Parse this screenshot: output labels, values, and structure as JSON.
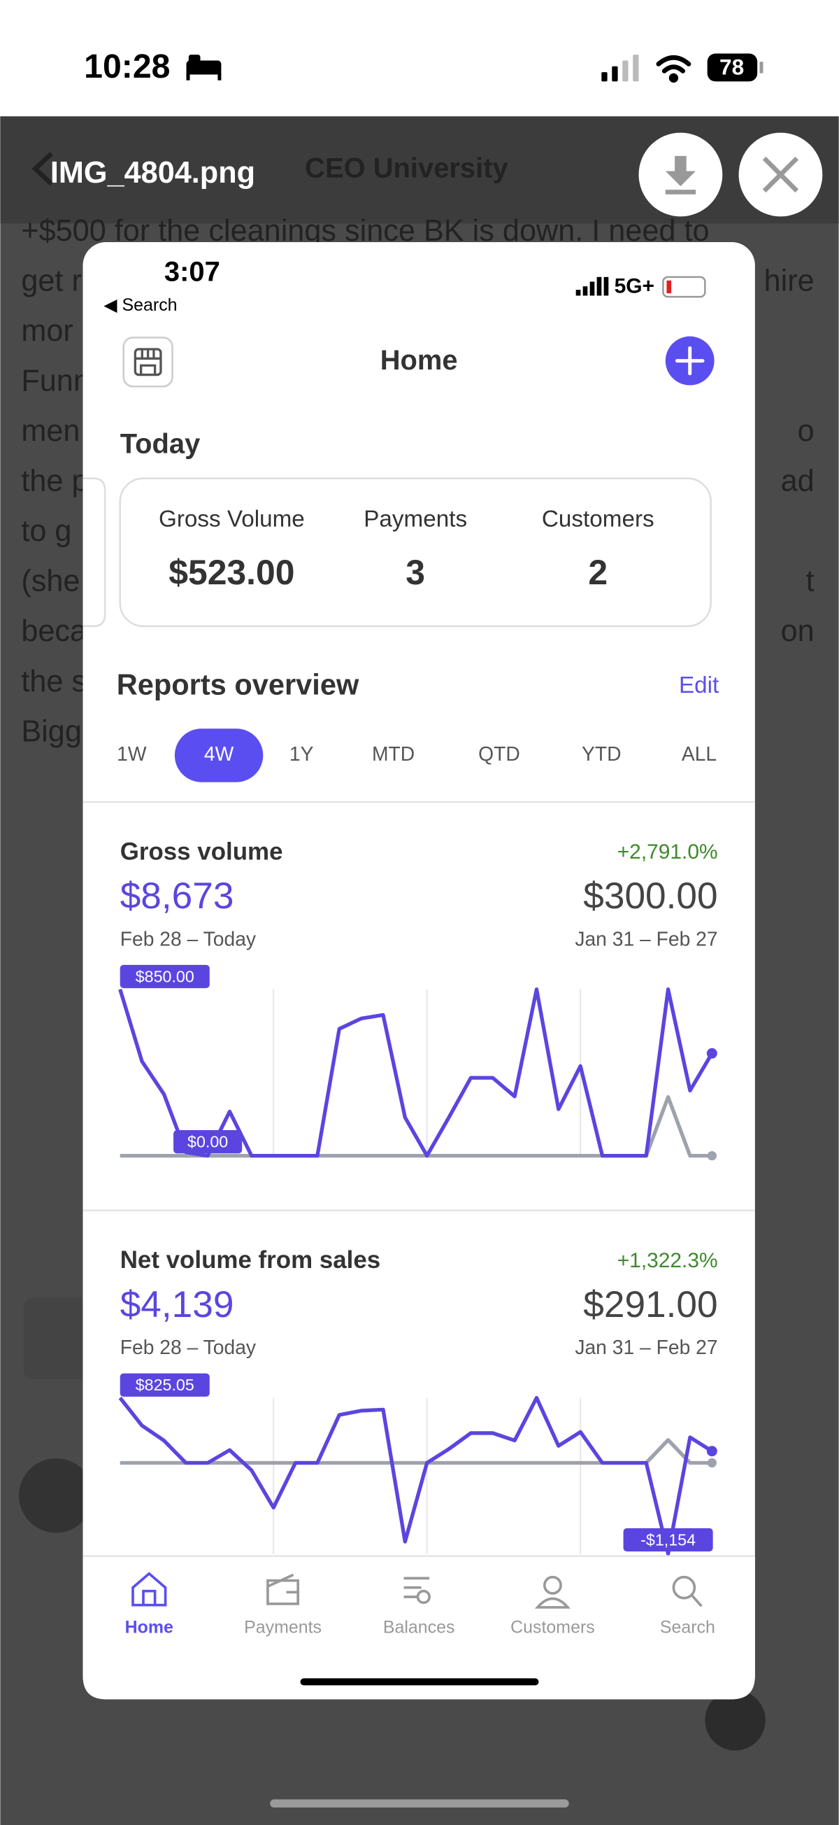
{
  "status_bar": {
    "time": "10:28",
    "battery": "78"
  },
  "viewer": {
    "filename": "IMG_4804.png",
    "behind_title": "CEO University"
  },
  "background": {
    "lines": [
      {
        "left": "+$500 for the cleanings since BK is down. I need to"
      },
      {
        "left": "get r",
        "right": "hire"
      },
      {
        "left": "mor"
      },
      {
        "left": "Funn"
      },
      {
        "left": "men",
        "right": "o"
      },
      {
        "left": "the p",
        "right": "ad"
      },
      {
        "left": "to g"
      },
      {
        "left": "(she",
        "right": "t"
      },
      {
        "left": "beca",
        "right": "on"
      },
      {
        "left": "the s"
      },
      {
        "left": "Bigg"
      }
    ]
  },
  "app": {
    "status_bar": {
      "time": "3:07",
      "back": "◀ Search",
      "network": "5G+"
    },
    "header": {
      "title": "Home"
    },
    "today": {
      "title": "Today",
      "stats": [
        {
          "label": "Gross Volume",
          "value": "$523.00"
        },
        {
          "label": "Payments",
          "value": "3"
        },
        {
          "label": "Customers",
          "value": "2"
        }
      ]
    },
    "reports": {
      "title": "Reports overview",
      "edit": "Edit",
      "ranges": [
        "1W",
        "4W",
        "1Y",
        "MTD",
        "QTD",
        "YTD",
        "ALL"
      ],
      "active_range": 1
    },
    "tabs": [
      "Home",
      "Payments",
      "Balances",
      "Customers",
      "Search"
    ],
    "active_tab": 0
  },
  "chart_data": [
    {
      "type": "line",
      "title": "Gross volume",
      "change": "+2,791.0%",
      "value": "$8,673",
      "comparison_value": "$300.00",
      "period": "Feb 28 – Today",
      "comparison_period": "Jan 31 – Feb 27",
      "max_label": "$850.00",
      "min_label": "$0.00",
      "series": [
        {
          "color": "#9ea2ad",
          "values": [
            0,
            0,
            0,
            0,
            0,
            0,
            0,
            0,
            0,
            0,
            0,
            0,
            0,
            0,
            0,
            0,
            0,
            0,
            0,
            0,
            0,
            0,
            0,
            0,
            0,
            300,
            0,
            0
          ]
        },
        {
          "color": "#5b45e0",
          "values": [
            850,
            482,
            315,
            18,
            0,
            226,
            0,
            0,
            0,
            0,
            648,
            701,
            719,
            196,
            0,
            196,
            398,
            398,
            303,
            850,
            238,
            458,
            0,
            0,
            0,
            850,
            333,
            523
          ]
        }
      ]
    },
    {
      "type": "line",
      "title": "Net volume from sales",
      "change": "+1,322.3%",
      "value": "$4,139",
      "comparison_value": "$291.00",
      "period": "Feb 28 – Today",
      "comparison_period": "Jan 31 – Feb 27",
      "max_label": "$825.05",
      "min_label": "-$1,154",
      "series": [
        {
          "color": "#9ea2ad",
          "values": [
            0,
            0,
            0,
            0,
            0,
            0,
            0,
            0,
            0,
            0,
            0,
            0,
            0,
            0,
            0,
            0,
            0,
            0,
            0,
            0,
            0,
            0,
            0,
            0,
            0,
            291,
            0,
            0
          ]
        },
        {
          "color": "#5b45e0",
          "values": [
            825.05,
            473,
            284,
            0,
            0,
            162,
            -95,
            -568,
            0,
            0,
            608,
            662,
            676,
            -1000,
            0,
            176,
            378,
            378,
            284,
            825.05,
            216,
            392,
            0,
            0,
            0,
            -1154,
            324,
            149
          ]
        }
      ]
    }
  ]
}
